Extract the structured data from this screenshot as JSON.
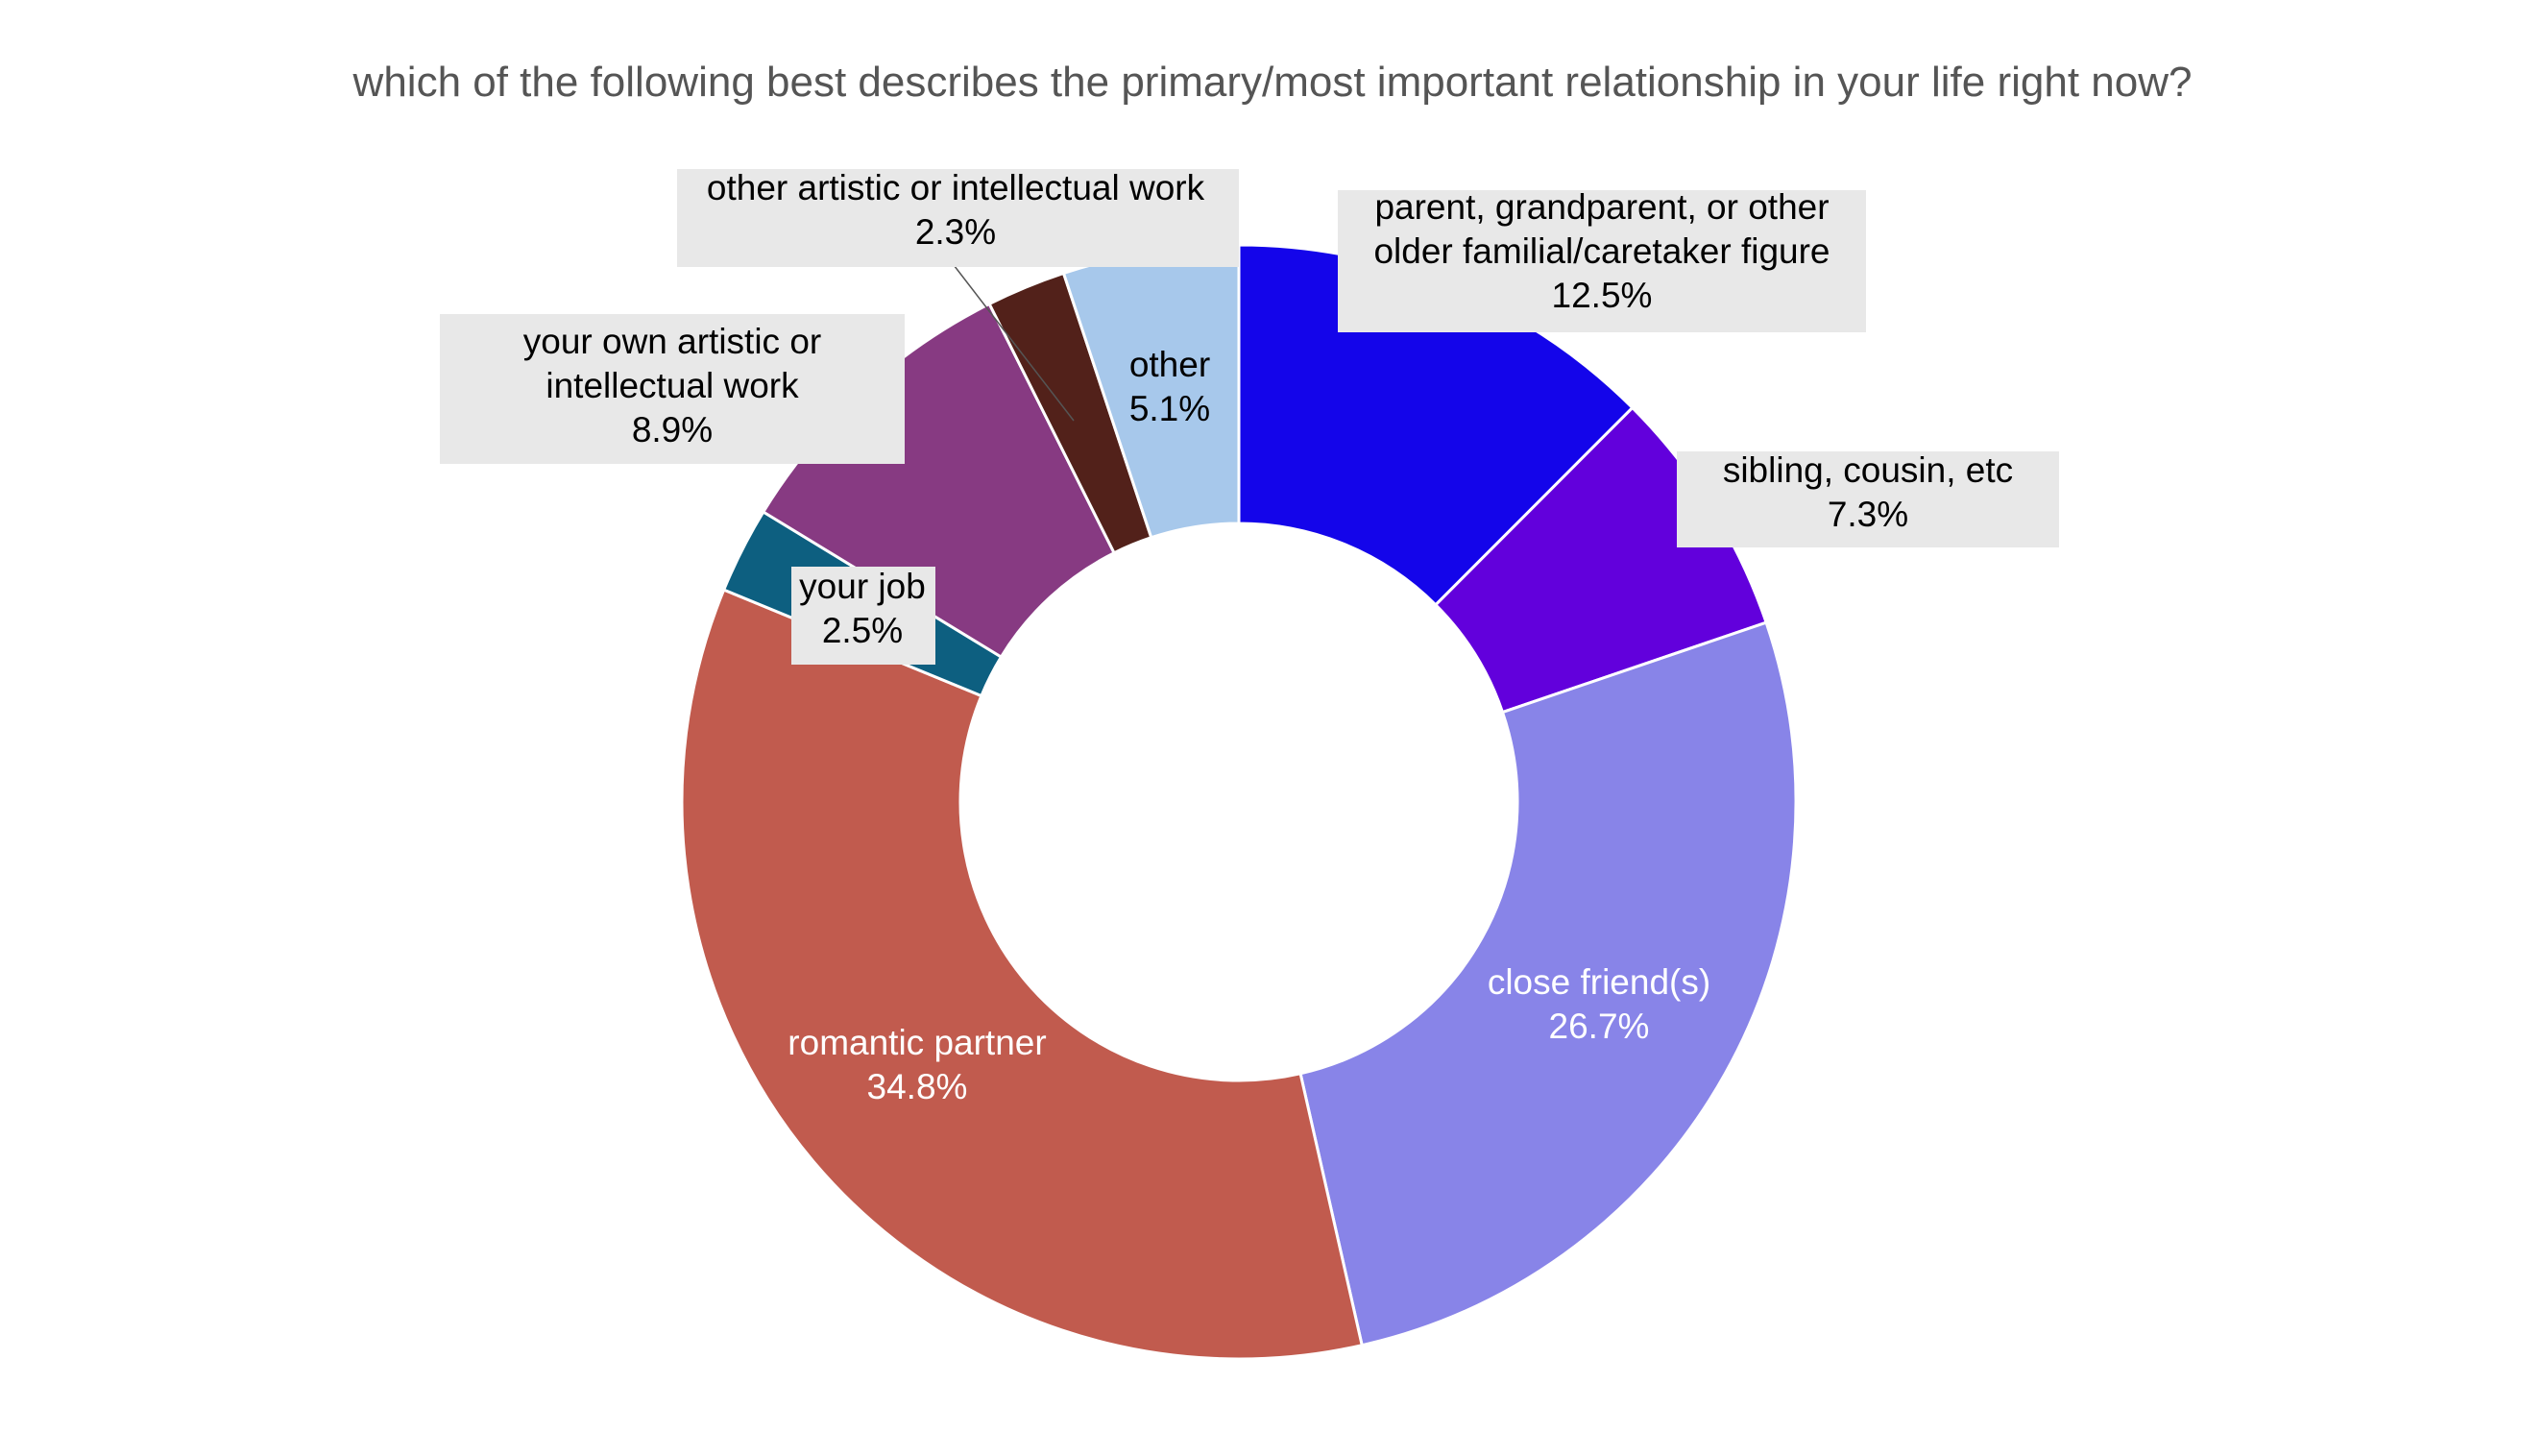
{
  "chart_data": {
    "type": "pie",
    "style": "donut",
    "title": "which of the following best describes the primary/most important relationship in your life right now?",
    "slices": [
      {
        "label_lines": [
          "parent, grandparent, or other",
          "older familial/caretaker figure"
        ],
        "value": 12.5,
        "value_text": "12.5%",
        "color": "#1405EA",
        "label_box": true
      },
      {
        "label_lines": [
          "sibling, cousin, etc"
        ],
        "value": 7.3,
        "value_text": "7.3%",
        "color": "#6200DC",
        "label_box": true
      },
      {
        "label_lines": [
          "close friend(s)"
        ],
        "value": 26.7,
        "value_text": "26.7%",
        "color": "#8884E8",
        "label_box": false
      },
      {
        "label_lines": [
          "romantic partner"
        ],
        "value": 34.8,
        "value_text": "34.8%",
        "color": "#C15B4E",
        "label_box": false
      },
      {
        "label_lines": [
          "your job"
        ],
        "value": 2.5,
        "value_text": "2.5%",
        "color": "#0D5F80",
        "label_box": true
      },
      {
        "label_lines": [
          "your own artistic or",
          "intellectual work"
        ],
        "value": 8.9,
        "value_text": "8.9%",
        "color": "#873A82",
        "label_box": true
      },
      {
        "label_lines": [
          "other artistic or intellectual work"
        ],
        "value": 2.3,
        "value_text": "2.3%",
        "color": "#52211A",
        "label_box": true
      },
      {
        "label_lines": [
          "other"
        ],
        "value": 5.1,
        "value_text": "5.1%",
        "color": "#A7C8EB",
        "label_box": false
      }
    ],
    "start_angle": "12 o'clock",
    "direction": "clockwise",
    "legend": "none"
  }
}
